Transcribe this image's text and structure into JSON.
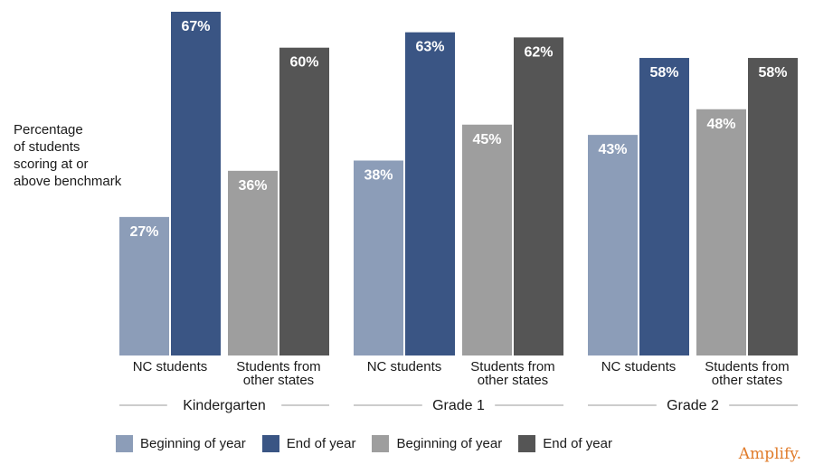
{
  "chart_data": {
    "type": "bar",
    "ylabel": "Percentage\nof students\nscoring at or\nabove benchmark",
    "ylim": [
      0,
      100
    ],
    "grid": false,
    "groups": [
      {
        "label": "Kindergarten",
        "subgroups": [
          {
            "label": "NC students",
            "values": [
              27,
              67
            ],
            "value_labels": [
              "27%",
              "67%"
            ]
          },
          {
            "label": "Students from\nother states",
            "values": [
              36,
              60
            ],
            "value_labels": [
              "36%",
              "60%"
            ]
          }
        ]
      },
      {
        "label": "Grade 1",
        "subgroups": [
          {
            "label": "NC students",
            "values": [
              38,
              63
            ],
            "value_labels": [
              "38%",
              "63%"
            ]
          },
          {
            "label": "Students from\nother states",
            "values": [
              45,
              62
            ],
            "value_labels": [
              "45%",
              "62%"
            ]
          }
        ]
      },
      {
        "label": "Grade 2",
        "subgroups": [
          {
            "label": "NC students",
            "values": [
              43,
              58
            ],
            "value_labels": [
              "43%",
              "58%"
            ]
          },
          {
            "label": "Students from\nother states",
            "values": [
              48,
              58
            ],
            "value_labels": [
              "48%",
              "58%"
            ]
          }
        ]
      }
    ],
    "legend": [
      {
        "label": "Beginning of year",
        "color": "#8c9db8"
      },
      {
        "label": "End of year",
        "color": "#3a5584"
      },
      {
        "label": "Beginning of year",
        "color": "#9e9e9e"
      },
      {
        "label": "End of year",
        "color": "#555555"
      }
    ],
    "legend_position": "bottom"
  },
  "brand": "Amplify."
}
